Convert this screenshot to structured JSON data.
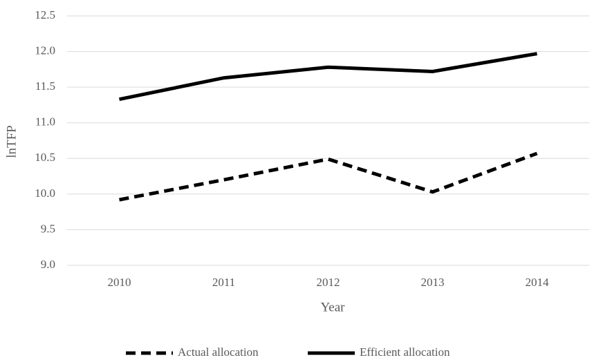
{
  "chart_data": {
    "type": "line",
    "x_label": "Year",
    "y_label": "lnTFP",
    "categories": [
      "2010",
      "2011",
      "2012",
      "2013",
      "2014"
    ],
    "series": [
      {
        "name": "Actual allocation",
        "color": "#000000",
        "line_style": "dashed",
        "values": [
          9.92,
          10.2,
          10.49,
          10.03,
          10.57
        ]
      },
      {
        "name": "Efficient allocation",
        "color": "#000000",
        "line_style": "solid",
        "values": [
          11.33,
          11.63,
          11.78,
          11.72,
          11.97
        ]
      }
    ],
    "ylim": [
      9.0,
      12.5
    ],
    "yticks": [
      {
        "value": 9,
        "label": "9.0"
      },
      9.5,
      {
        "value": 10,
        "label": "10.0"
      },
      10.5,
      {
        "value": 11,
        "label": "11.0"
      },
      11.5,
      {
        "value": 12,
        "label": "12.0"
      },
      12.5
    ],
    "grid": true,
    "legend": "bottom"
  }
}
